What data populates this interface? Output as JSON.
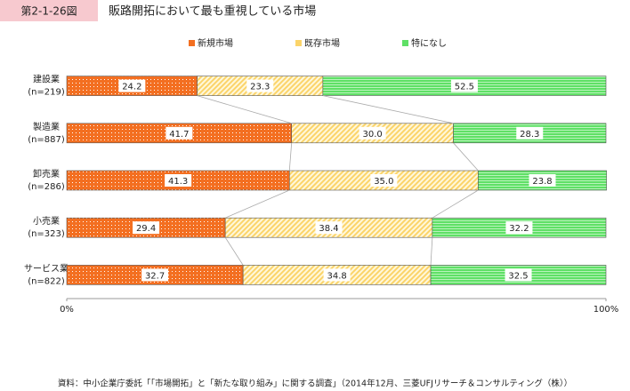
{
  "chart_data": {
    "type": "stacked-bar-horizontal",
    "figure_label": "第2-1-26図",
    "title": "販路開拓において最も重視している市場",
    "categories": [
      [
        "建設業",
        "(n=219)"
      ],
      [
        "製造業",
        "(n=887)"
      ],
      [
        "卸売業",
        "(n=286)"
      ],
      [
        "小売業",
        "(n=323)"
      ],
      [
        "サービス業",
        "(n=822)"
      ]
    ],
    "series": [
      {
        "name": "新規市場",
        "color": "#f36f21",
        "values": [
          24.2,
          41.7,
          41.3,
          29.4,
          32.7
        ],
        "value_labels": [
          "24.2",
          "41.7",
          "41.3",
          "29.4",
          "32.7"
        ]
      },
      {
        "name": "既存市場",
        "color": "#fbd46a",
        "values": [
          23.3,
          30.0,
          35.0,
          38.4,
          34.8
        ],
        "value_labels": [
          "23.3",
          "30.0",
          "35.0",
          "38.4",
          "34.8"
        ]
      },
      {
        "name": "特になし",
        "color": "#5fe066",
        "values": [
          52.5,
          28.3,
          23.8,
          32.2,
          32.5
        ],
        "value_labels": [
          "52.5",
          "28.3",
          "23.8",
          "32.2",
          "32.5"
        ]
      }
    ],
    "xlim": [
      0,
      100
    ],
    "xticks": [
      {
        "value": 0,
        "label": "0%"
      },
      {
        "value": 100,
        "label": "100%"
      }
    ],
    "connectors": true,
    "source": "資料：中小企業庁委託「「市場開拓」と「新たな取り組み」に関する調査」（2014年12月、三菱UFJリサーチ＆コンサルティング（株））"
  }
}
